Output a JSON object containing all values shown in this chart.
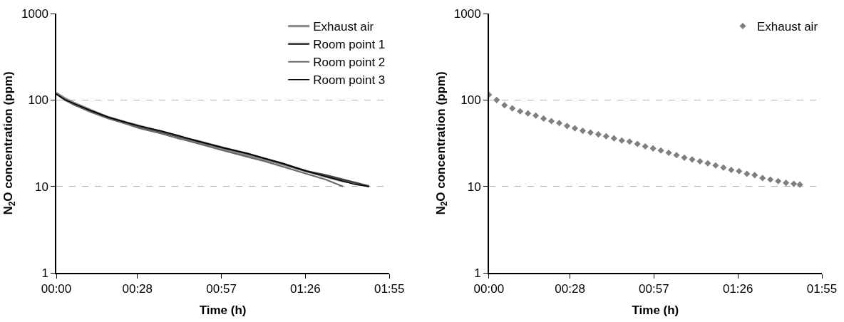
{
  "chart_data": [
    {
      "type": "line",
      "xlabel": "Time (h)",
      "ylabel": "N$_{2}$O concentration (ppm)",
      "log": "y",
      "grid": "y",
      "legend": "top right",
      "marker": "none",
      "line_style": "solid",
      "xlim": [
        0,
        1.91667
      ],
      "xticks": [
        {
          "value": 0,
          "label": "00:00"
        },
        {
          "value": 0.46667,
          "label": "00:28"
        },
        {
          "value": 0.95,
          "label": "00:57"
        },
        {
          "value": 1.43333,
          "label": "01:26"
        },
        {
          "value": 1.91667,
          "label": "01:55"
        }
      ],
      "ylim": [
        1,
        1000
      ],
      "yticks": [
        1,
        10,
        100,
        1000
      ],
      "x": [
        0,
        0.05,
        0.1,
        0.2,
        0.3,
        0.4,
        0.48,
        0.6,
        0.7,
        0.8,
        0.96,
        1.1,
        1.2,
        1.3,
        1.44,
        1.55,
        1.65,
        1.72,
        1.8
      ],
      "series": [
        {
          "name": "Exhaust air",
          "color": "#8c8c8c",
          "values": [
            120,
            104,
            93,
            76,
            63,
            55,
            50,
            43,
            38,
            33,
            27,
            23,
            20.5,
            18,
            15,
            13,
            11.5,
            11,
            10
          ]
        },
        {
          "name": "Room point 1",
          "color": "#404040",
          "values": [
            118,
            100,
            90,
            75,
            63,
            55,
            49,
            43,
            38,
            34,
            28,
            24,
            21,
            18.5,
            15,
            13.5,
            12,
            11,
            10
          ]
        },
        {
          "name": "Room point 2",
          "color": "#6a6a6a",
          "values": [
            120,
            100,
            88,
            72,
            61,
            53,
            47,
            41,
            36,
            32,
            26,
            22,
            19.5,
            17,
            14,
            12,
            10,
            null,
            null
          ]
        },
        {
          "name": "Room point 3",
          "color": "#000000",
          "values": [
            117,
            101,
            91,
            75,
            63,
            55,
            50,
            44,
            39,
            34,
            28,
            24,
            21,
            18.5,
            15,
            13,
            11.5,
            10.5,
            10
          ]
        }
      ]
    },
    {
      "type": "scatter",
      "xlabel": "Time (h)",
      "ylabel": "N$_{2}$O concentration (ppm)",
      "log": "y",
      "grid": "y",
      "legend": "top right",
      "marker": "diamond",
      "xlim": [
        0,
        1.91667
      ],
      "xticks": [
        {
          "value": 0,
          "label": "00:00"
        },
        {
          "value": 0.46667,
          "label": "00:28"
        },
        {
          "value": 0.95,
          "label": "00:57"
        },
        {
          "value": 1.43333,
          "label": "01:26"
        },
        {
          "value": 1.91667,
          "label": "01:55"
        }
      ],
      "ylim": [
        1,
        1000
      ],
      "yticks": [
        1,
        10,
        100,
        1000
      ],
      "x": [
        0,
        0.045,
        0.09,
        0.135,
        0.18,
        0.225,
        0.27,
        0.315,
        0.36,
        0.405,
        0.45,
        0.495,
        0.54,
        0.585,
        0.63,
        0.675,
        0.72,
        0.765,
        0.81,
        0.855,
        0.9,
        0.945,
        0.99,
        1.035,
        1.08,
        1.125,
        1.17,
        1.215,
        1.26,
        1.305,
        1.35,
        1.395,
        1.44,
        1.485,
        1.53,
        1.575,
        1.62,
        1.665,
        1.71,
        1.755,
        1.79
      ],
      "series": [
        {
          "name": "Exhaust air",
          "color": "#7f7f7f",
          "values": [
            115,
            100,
            87,
            80,
            74,
            70,
            66,
            61,
            57,
            54,
            50,
            47,
            44,
            42,
            40,
            38,
            36,
            34,
            33,
            31,
            29,
            27.5,
            26,
            24.5,
            23,
            21.5,
            20.5,
            19.5,
            18.5,
            17.5,
            16.5,
            15.5,
            15,
            14,
            13.5,
            12.5,
            12,
            11.5,
            11,
            10.7,
            10.5
          ]
        }
      ]
    }
  ]
}
